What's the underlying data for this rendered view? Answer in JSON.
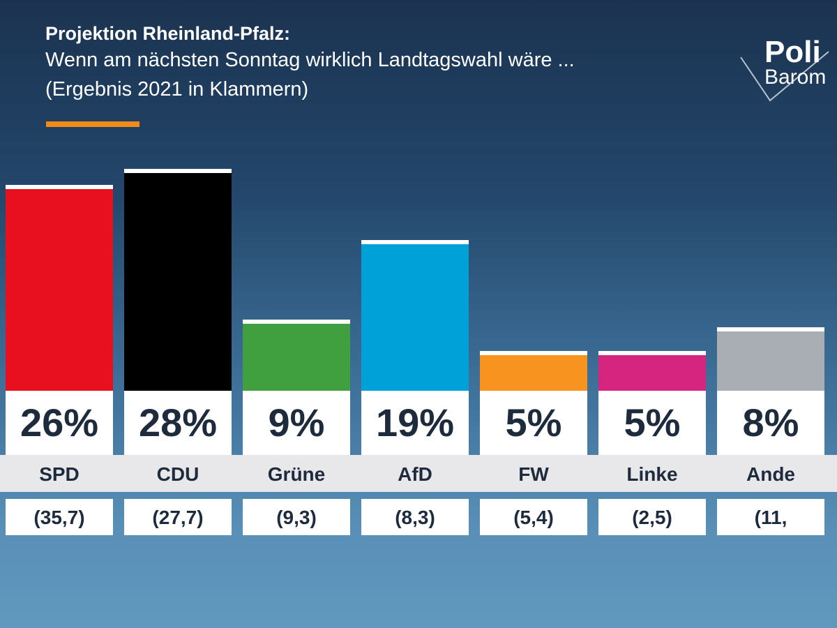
{
  "header": {
    "title": "Projektion Rheinland-Pfalz:",
    "subtitle_line1": "Wenn am nächsten Sonntag wirklich Landtagswahl wäre ...",
    "subtitle_line2": "(Ergebnis 2021 in Klammern)",
    "accent_color": "#f08a1c"
  },
  "logo": {
    "line1": "Poli",
    "line2": "Barom"
  },
  "chart_data": {
    "type": "bar",
    "title": "Projektion Rheinland-Pfalz:",
    "categories": [
      "SPD",
      "CDU",
      "Grüne",
      "AfD",
      "FW",
      "Linke",
      "Ande"
    ],
    "values": [
      26,
      28,
      9,
      19,
      5,
      5,
      8
    ],
    "value_labels": [
      "26%",
      "28%",
      "9%",
      "19%",
      "5%",
      "5%",
      "8%"
    ],
    "previous_labels": [
      "(35,7)",
      "(27,7)",
      "(9,3)",
      "(8,3)",
      "(5,4)",
      "(2,5)",
      "(11,"
    ],
    "colors": [
      "#e8101e",
      "#000000",
      "#40a040",
      "#00a0d8",
      "#f7931e",
      "#d6257e",
      "#a9adb4"
    ],
    "ylim": [
      0,
      28
    ],
    "grid": false
  }
}
